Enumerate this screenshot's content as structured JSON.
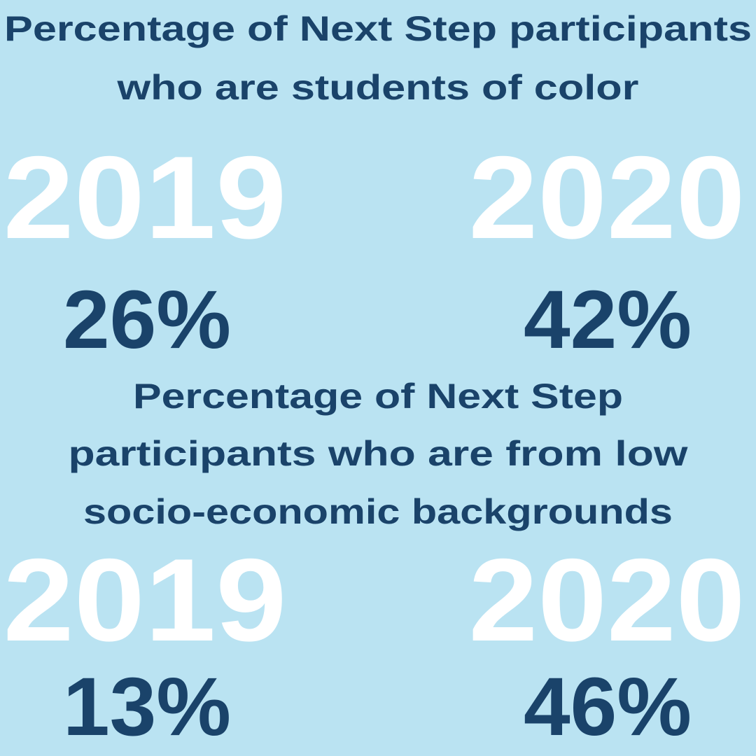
{
  "sections": [
    {
      "title_lines": [
        "Percentage of Next Step participants",
        "who are students of color"
      ],
      "items": [
        {
          "year": "2019",
          "value": "26%"
        },
        {
          "year": "2020",
          "value": "42%"
        }
      ]
    },
    {
      "title_lines": [
        "Percentage of Next Step",
        "participants who are from low",
        "socio-economic backgrounds"
      ],
      "items": [
        {
          "year": "2019",
          "value": "13%"
        },
        {
          "year": "2020",
          "value": "46%"
        }
      ]
    }
  ]
}
